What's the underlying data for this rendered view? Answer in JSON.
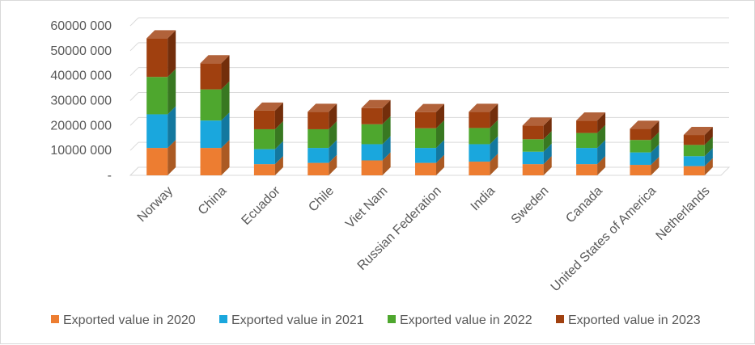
{
  "chart_data": {
    "type": "bar",
    "stacked": true,
    "style": "3d-stacked-column",
    "categories": [
      "Norway",
      "China",
      "Ecuador",
      "Chile",
      "Viet Nam",
      "Russian Federation",
      "India",
      "Sweden",
      "Canada",
      "United States of America",
      "Netherlands"
    ],
    "series": [
      {
        "name": "Exported value in 2020",
        "color": "#ed7d31",
        "values": [
          11000000,
          11000000,
          4500000,
          5000000,
          6000000,
          5000000,
          5500000,
          4500000,
          4500000,
          4200000,
          3700000
        ]
      },
      {
        "name": "Exported value in 2021",
        "color": "#1aa7dd",
        "values": [
          13500000,
          11000000,
          6000000,
          6000000,
          6500000,
          6000000,
          7000000,
          5000000,
          6500000,
          5000000,
          4000000
        ]
      },
      {
        "name": "Exported value in 2022",
        "color": "#4ea72e",
        "values": [
          15000000,
          12500000,
          8000000,
          7500000,
          8000000,
          7900000,
          6500000,
          5000000,
          6000000,
          5000000,
          4500000
        ]
      },
      {
        "name": "Exported value in 2023",
        "color": "#a0400f",
        "values": [
          15500000,
          10500000,
          7500000,
          7000000,
          6500000,
          6500000,
          6500000,
          5500000,
          5000000,
          4500000,
          4000000
        ]
      }
    ],
    "ylim": [
      0,
      60000000
    ],
    "y_ticks": [
      0,
      10000000,
      20000000,
      30000000,
      40000000,
      50000000,
      60000000
    ],
    "y_tick_labels": [
      "-",
      "10000 000",
      "20000 000",
      "30000 000",
      "40000 000",
      "50000 000",
      "60000 000"
    ],
    "grid": true,
    "legend_position": "bottom",
    "title": "",
    "xlabel": "",
    "ylabel": ""
  }
}
